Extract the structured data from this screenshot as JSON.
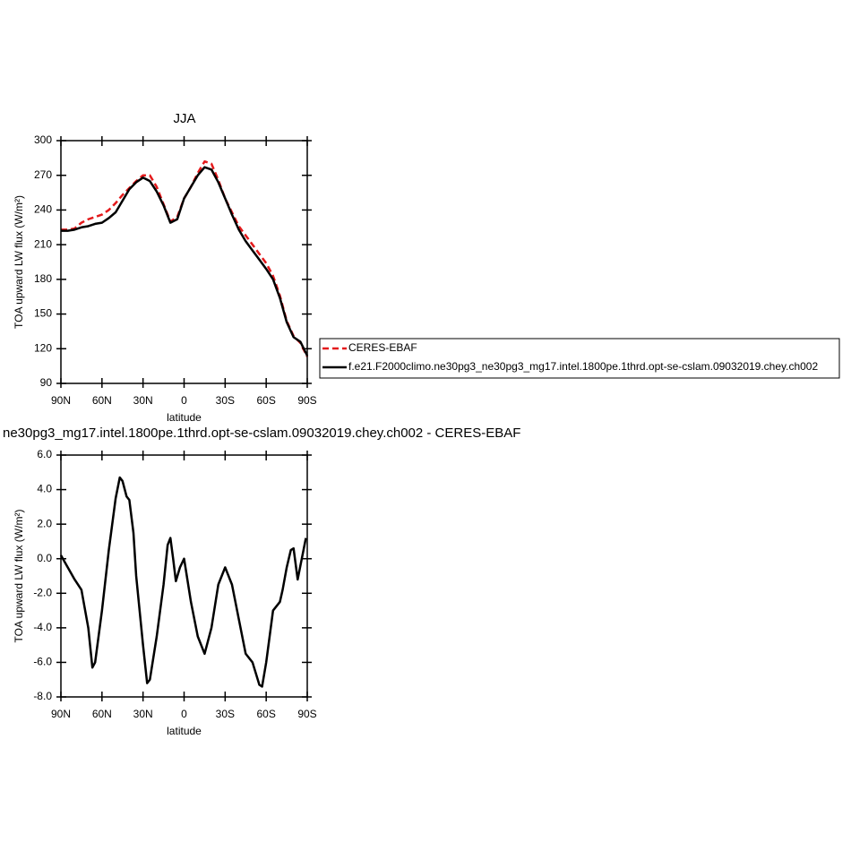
{
  "chart_data": [
    {
      "type": "line",
      "title": "JJA",
      "xlabel": "latitude",
      "ylabel": "TOA upward LW flux (W/m²)",
      "x": [
        90,
        85,
        80,
        75,
        70,
        65,
        60,
        55,
        50,
        45,
        40,
        35,
        30,
        25,
        20,
        15,
        10,
        5,
        0,
        -5,
        -10,
        -15,
        -20,
        -25,
        -30,
        -35,
        -40,
        -45,
        -50,
        -55,
        -60,
        -65,
        -70,
        -75,
        -80,
        -85,
        -90
      ],
      "series": [
        {
          "name": "CERES-EBAF",
          "color": "#e41a1c",
          "line_style": "dashed",
          "values": [
            223,
            223,
            224,
            229,
            232,
            234,
            236,
            240,
            246,
            253,
            259,
            265,
            270,
            270,
            260,
            245,
            230,
            234,
            250,
            260,
            272,
            282,
            280,
            266,
            250,
            238,
            226,
            218,
            210,
            202,
            194,
            183,
            166,
            144,
            131,
            125,
            113
          ]
        },
        {
          "name": "f.e21.F2000climo.ne30pg3_ne30pg3_mg17.intel.1800pe.1thrd.opt-se-cslam.09032019.chey.ch002",
          "color": "#000000",
          "line_style": "solid",
          "values": [
            222,
            222,
            223,
            225,
            226,
            228,
            229,
            233,
            238,
            248,
            258,
            264,
            268,
            265,
            256,
            244,
            229,
            232,
            250,
            260,
            270,
            277,
            275,
            264,
            250,
            236,
            223,
            213,
            205,
            197,
            189,
            180,
            164,
            143,
            130,
            126,
            114
          ]
        }
      ],
      "xlim": [
        90,
        -90
      ],
      "xticks": [
        {
          "value": 90,
          "label": "90N"
        },
        {
          "value": 60,
          "label": "60N"
        },
        {
          "value": 30,
          "label": "30N"
        },
        0,
        {
          "value": -30,
          "label": "30S"
        },
        {
          "value": -60,
          "label": "60S"
        },
        {
          "value": -90,
          "label": "90S"
        }
      ],
      "ylim": [
        90,
        300
      ],
      "yticks": [
        90,
        120,
        150,
        180,
        210,
        240,
        270,
        300
      ],
      "legend": "right"
    },
    {
      "type": "line",
      "title": "ne30pg3_mg17.intel.1800pe.1thrd.opt-se-cslam.09032019.chey.ch002 - CERES-EBAF",
      "xlabel": "latitude",
      "ylabel": "TOA upward LW flux (W/m²)",
      "x": [
        90,
        85,
        80,
        75,
        70,
        67,
        65,
        60,
        55,
        50,
        47,
        45,
        42,
        40,
        37,
        35,
        30,
        27,
        25,
        20,
        15,
        12,
        10,
        8,
        6,
        3,
        0,
        -2,
        -5,
        -10,
        -15,
        -20,
        -25,
        -30,
        -35,
        -40,
        -45,
        -50,
        -55,
        -57,
        -60,
        -65,
        -70,
        -72,
        -75,
        -78,
        -80,
        -83,
        -86,
        -89
      ],
      "series": [
        {
          "color": "#000000",
          "line_style": "solid",
          "values": [
            0.2,
            -0.5,
            -1.2,
            -1.8,
            -4,
            -6.3,
            -6,
            -3,
            0.5,
            3.5,
            4.7,
            4.5,
            3.6,
            3.4,
            1.5,
            -1,
            -5,
            -7.2,
            -7,
            -4.5,
            -1.5,
            0.8,
            1.2,
            0,
            -1.3,
            -0.5,
            0,
            -1,
            -2.5,
            -4.5,
            -5.5,
            -4,
            -1.5,
            -0.5,
            -1.5,
            -3.5,
            -5.5,
            -6,
            -7.3,
            -7.4,
            -6,
            -3,
            -2.5,
            -1.8,
            -0.5,
            0.5,
            0.6,
            -1.2,
            0,
            1.2
          ]
        }
      ],
      "xlim": [
        90,
        -90
      ],
      "xticks": [
        {
          "value": 90,
          "label": "90N"
        },
        {
          "value": 60,
          "label": "60N"
        },
        {
          "value": 30,
          "label": "30N"
        },
        0,
        {
          "value": -30,
          "label": "30S"
        },
        {
          "value": -60,
          "label": "60S"
        },
        {
          "value": -90,
          "label": "90S"
        }
      ],
      "ylim": [
        -8,
        6
      ],
      "yticks": [
        {
          "value": -8,
          "label": "-8.0"
        },
        {
          "value": -6,
          "label": "-6.0"
        },
        {
          "value": -4,
          "label": "-4.0"
        },
        {
          "value": -2,
          "label": "-2.0"
        },
        {
          "value": 0,
          "label": "0.0"
        },
        {
          "value": 2,
          "label": "2.0"
        },
        {
          "value": 4,
          "label": "4.0"
        },
        {
          "value": 6,
          "label": "6.0"
        }
      ]
    }
  ]
}
